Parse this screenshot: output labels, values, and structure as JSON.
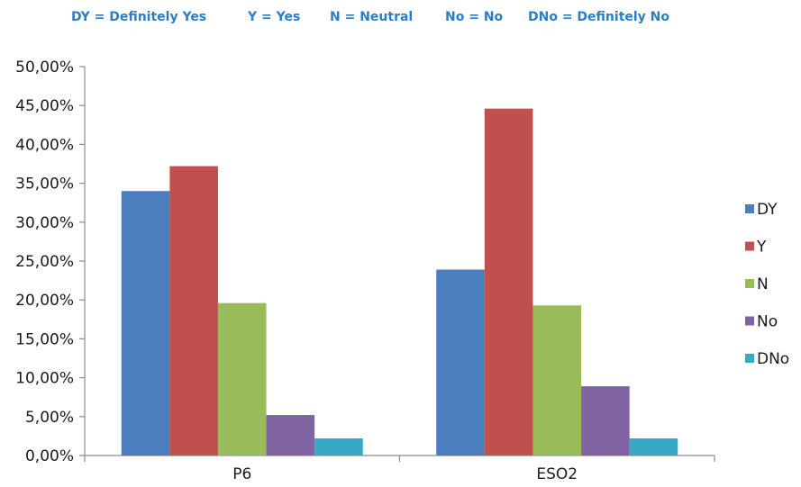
{
  "legend_key": {
    "items": [
      "DY = Definitely Yes",
      "Y = Yes",
      "N = Neutral",
      "No = No",
      "DNo = Definitely No"
    ]
  },
  "chart_data": {
    "type": "bar",
    "categories": [
      "P6",
      "ESO2"
    ],
    "series": [
      {
        "name": "DY",
        "color": "#4a7ebf",
        "values": [
          34.0,
          23.9
        ]
      },
      {
        "name": "Y",
        "color": "#bf504e",
        "values": [
          37.2,
          44.6
        ]
      },
      {
        "name": "N",
        "color": "#9abb59",
        "values": [
          19.6,
          19.3
        ]
      },
      {
        "name": "No",
        "color": "#7f63a2",
        "values": [
          5.2,
          8.9
        ]
      },
      {
        "name": "DNo",
        "color": "#36a9c6",
        "values": [
          2.2,
          2.2
        ]
      }
    ],
    "ylim": [
      0,
      50
    ],
    "yticks": [
      0,
      5,
      10,
      15,
      20,
      25,
      30,
      35,
      40,
      45,
      50
    ],
    "ytick_labels": [
      "0,00%",
      "5,00%",
      "10,00%",
      "15,00%",
      "20,00%",
      "25,00%",
      "30,00%",
      "35,00%",
      "40,00%",
      "45,00%",
      "50,00%"
    ],
    "title": "",
    "xlabel": "",
    "ylabel": "",
    "grid": false,
    "legend_position": "right"
  }
}
